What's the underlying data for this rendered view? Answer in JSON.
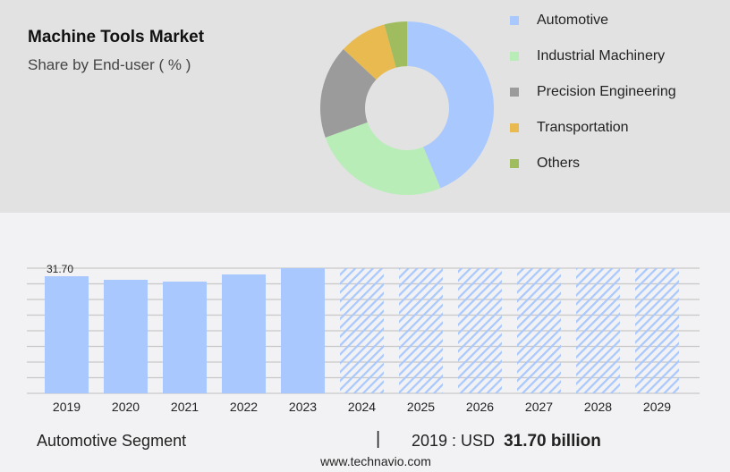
{
  "header": {
    "title": "Machine Tools Market",
    "subtitle": "Share by End-user ( % )"
  },
  "chart_data": [
    {
      "type": "pie",
      "title": "Machine Tools Market",
      "subtitle": "Share by End-user ( % )",
      "legend_placement": "right",
      "slices": [
        {
          "name": "Automotive",
          "value": 43.7,
          "color": "#a8c8fe"
        },
        {
          "name": "Industrial Machinery",
          "value": 25.8,
          "color": "#b8edb8"
        },
        {
          "name": "Precision Engineering",
          "value": 17.4,
          "color": "#9b9b9b"
        },
        {
          "name": "Transportation",
          "value": 8.9,
          "color": "#e8ba50"
        },
        {
          "name": "Others",
          "value": 4.2,
          "color": "#9fbc5e"
        }
      ]
    },
    {
      "type": "bar",
      "categories": [
        "2019",
        "2020",
        "2021",
        "2022",
        "2023",
        "2024",
        "2025",
        "2026",
        "2027",
        "2028",
        "2029"
      ],
      "values": [
        31.7,
        30.73,
        30.25,
        32.19,
        33.88,
        null,
        null,
        null,
        null,
        null,
        null
      ],
      "forecast_from": "2024",
      "data_labels": {
        "2019": "31.70"
      },
      "ylim": [
        0,
        33.88
      ],
      "grid": true,
      "color": "#a8c8fe"
    }
  ],
  "footer": {
    "segment": "Automotive Segment",
    "separator": "|",
    "year_label": "2019 : USD",
    "value": "31.70 billion",
    "site": "www.technavio.com"
  }
}
